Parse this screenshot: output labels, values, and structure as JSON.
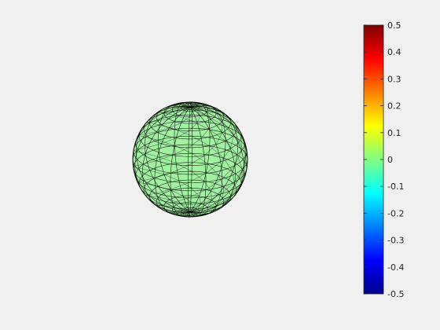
{
  "chart_data": {
    "type": "surface",
    "shape": "sphere",
    "surface_value": 0,
    "surface_color": "#8ef18e",
    "edge_color": "#000000",
    "face_alpha": 0.8,
    "background_color": "#f0f0f0",
    "colormap": "jet",
    "colorbar": {
      "location": "right",
      "limits": [
        -0.5,
        0.5
      ],
      "ticks": [
        0.5,
        0.4,
        0.3,
        0.2,
        0.1,
        0,
        -0.1,
        -0.2,
        -0.3,
        -0.4,
        -0.5
      ],
      "tick_labels": [
        "0.5",
        "0.4",
        "0.3",
        "0.2",
        "0.1",
        "0",
        "-0.1",
        "-0.2",
        "-0.3",
        "-0.4",
        "-0.5"
      ]
    }
  }
}
